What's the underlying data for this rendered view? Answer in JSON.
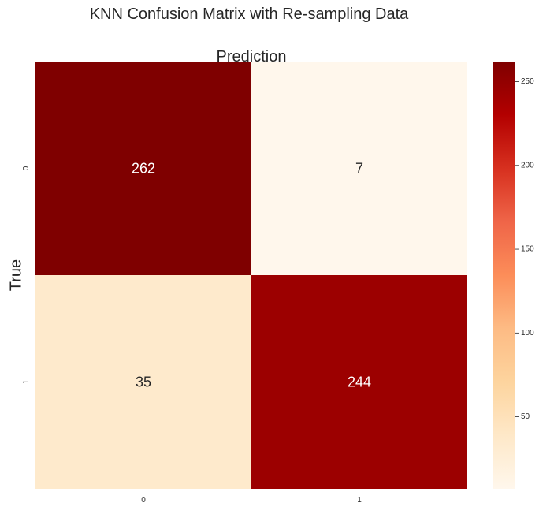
{
  "chart_data": {
    "type": "heatmap",
    "title": "KNN Confusion Matrix with Re-sampling Data",
    "xlabel": "Prediction",
    "ylabel": "True",
    "x_categories": [
      "0",
      "1"
    ],
    "y_categories": [
      "0",
      "1"
    ],
    "matrix": [
      [
        262,
        7
      ],
      [
        35,
        244
      ]
    ],
    "colormap": "OrRd",
    "colorbar": {
      "min": 7,
      "max": 262,
      "ticks": [
        50,
        100,
        150,
        200,
        250
      ]
    },
    "colors": {
      "low": "#fff7ec",
      "high": "#7f0000",
      "annotation_light": "#ffffff",
      "annotation_dark": "#262626"
    },
    "grid": false
  }
}
